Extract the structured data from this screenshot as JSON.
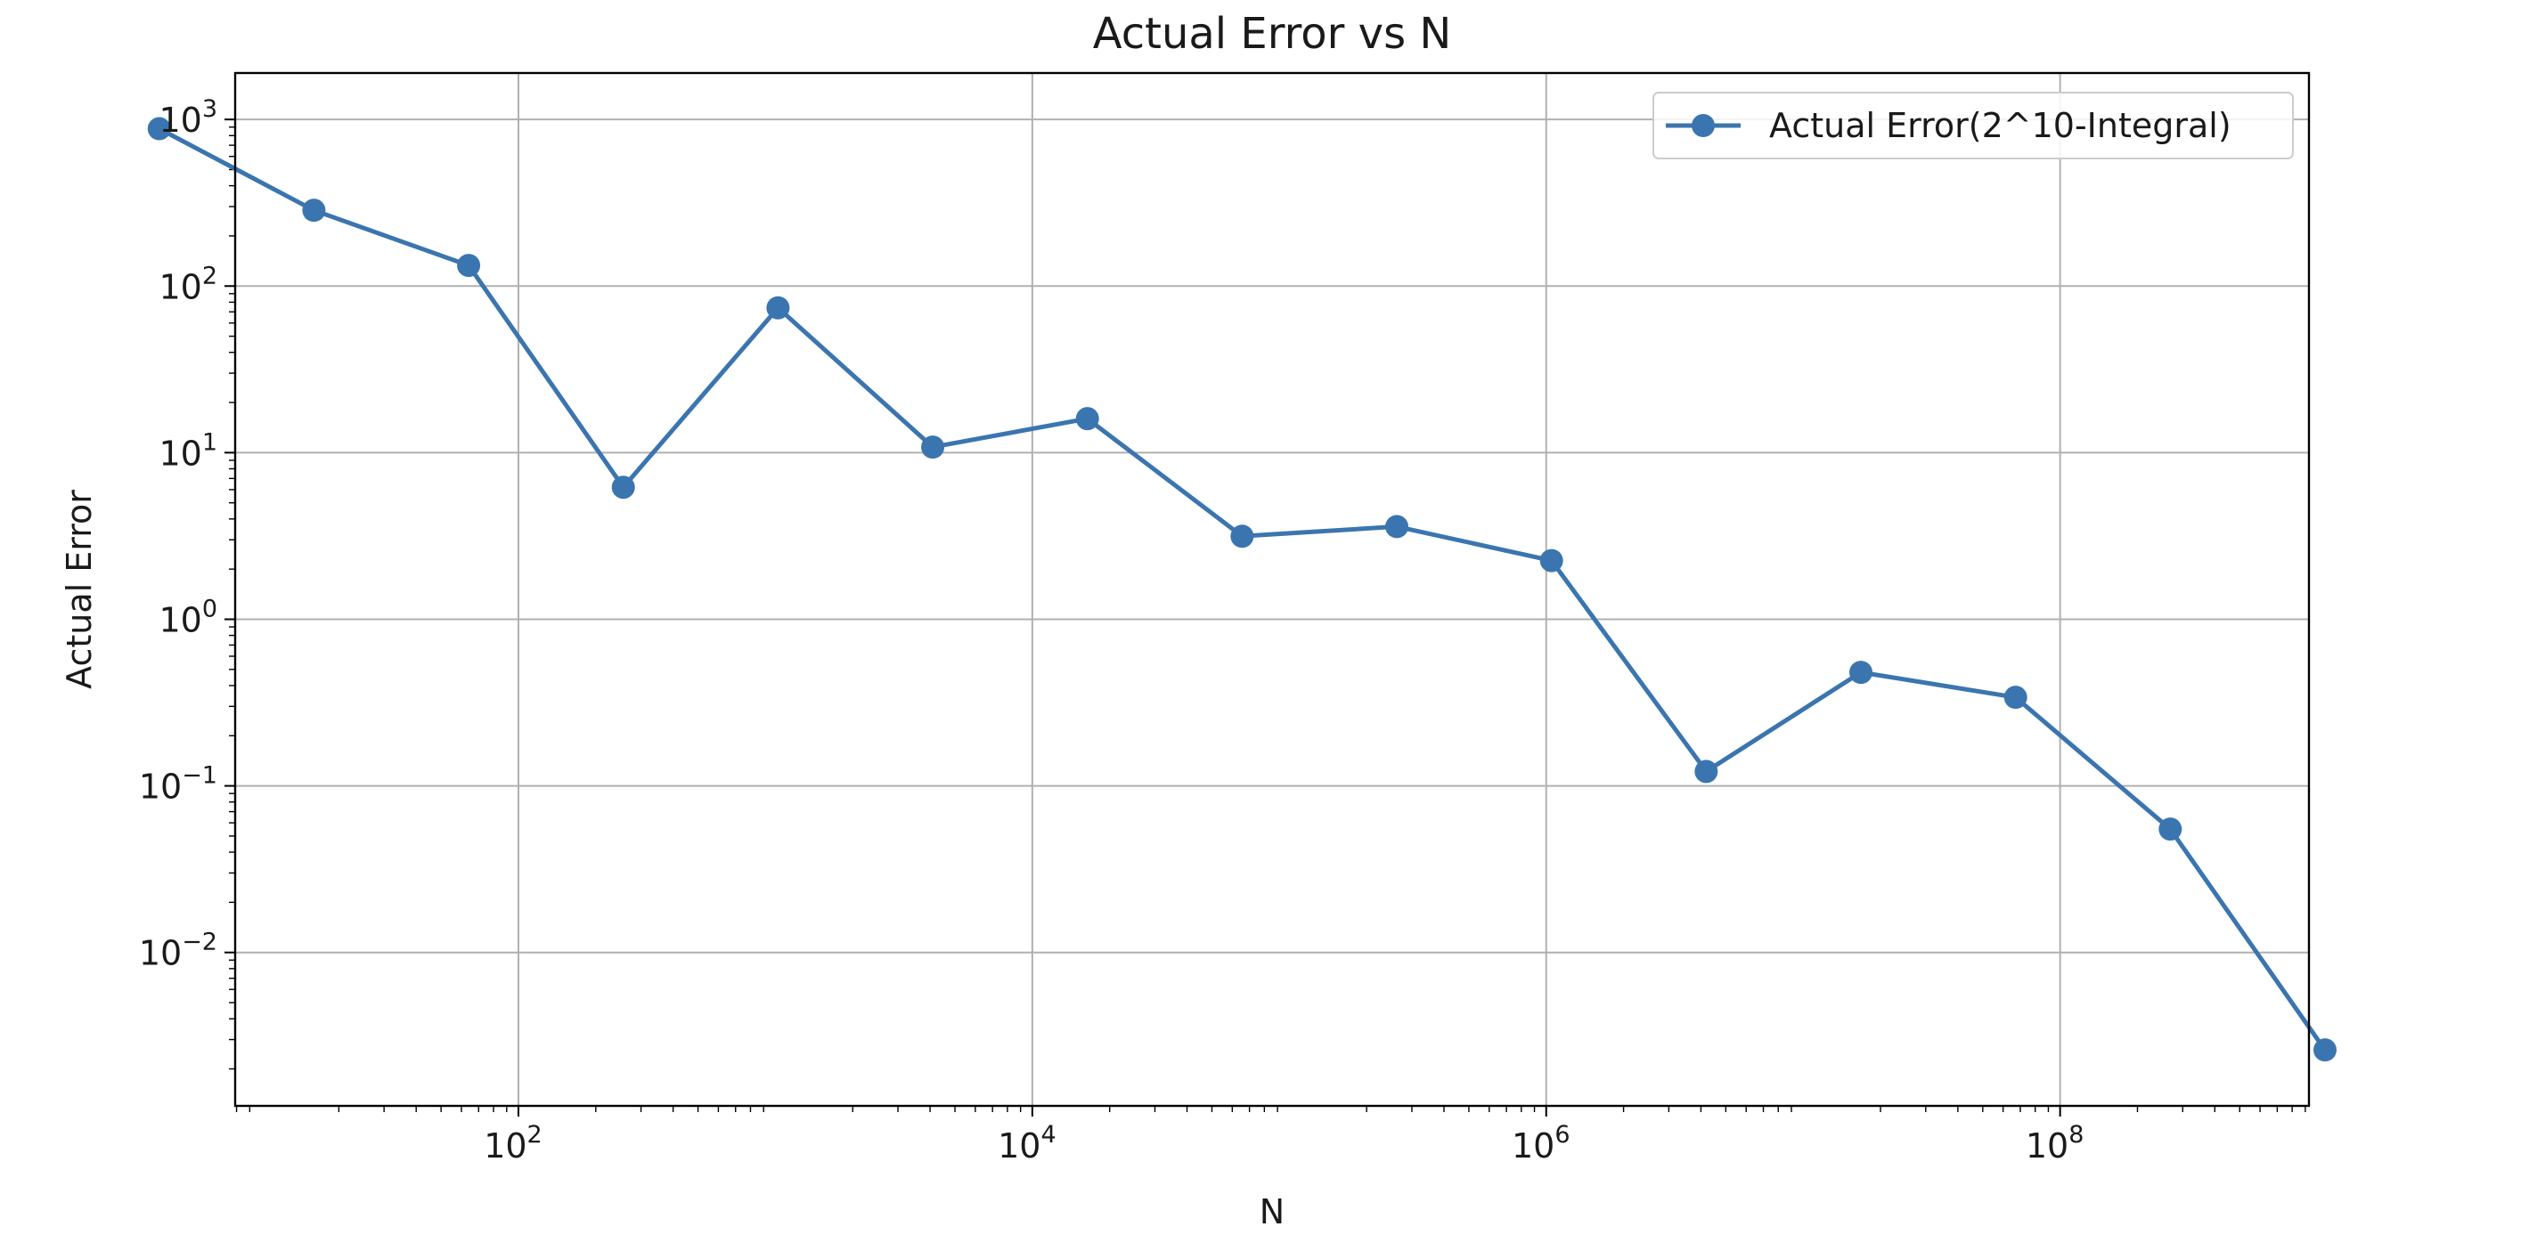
{
  "chart_data": {
    "type": "line",
    "title": "Actual Error vs N",
    "xlabel": "N",
    "ylabel": "Actual Error",
    "xscale": "log",
    "yscale": "log",
    "xlim": [
      7.9,
      930000000.0
    ],
    "ylim": [
      0.0012,
      1900
    ],
    "grid": true,
    "legend_position": "top-right",
    "x_ticks": [
      {
        "value": 100,
        "base": "10",
        "exp": "2"
      },
      {
        "value": 10000,
        "base": "10",
        "exp": "4"
      },
      {
        "value": 1000000,
        "base": "10",
        "exp": "6"
      },
      {
        "value": 100000000,
        "base": "10",
        "exp": "8"
      }
    ],
    "y_ticks": [
      {
        "value": 0.01,
        "base": "10",
        "exp": "−2"
      },
      {
        "value": 0.1,
        "base": "10",
        "exp": "−1"
      },
      {
        "value": 1,
        "base": "10",
        "exp": "0"
      },
      {
        "value": 10,
        "base": "10",
        "exp": "1"
      },
      {
        "value": 100,
        "base": "10",
        "exp": "2"
      },
      {
        "value": 1000,
        "base": "10",
        "exp": "3"
      }
    ],
    "series": [
      {
        "name": "Actual Error(2^10-Integral)",
        "color": "#3b75af",
        "marker": "circle",
        "points": [
          {
            "x": 4,
            "y": 880
          },
          {
            "x": 16,
            "y": 285
          },
          {
            "x": 64,
            "y": 133
          },
          {
            "x": 256,
            "y": 6.2
          },
          {
            "x": 1024,
            "y": 74
          },
          {
            "x": 4096,
            "y": 10.8
          },
          {
            "x": 16384,
            "y": 16
          },
          {
            "x": 65536,
            "y": 3.15
          },
          {
            "x": 262144,
            "y": 3.6
          },
          {
            "x": 1048576,
            "y": 2.25
          },
          {
            "x": 4194304,
            "y": 0.122
          },
          {
            "x": 16777216,
            "y": 0.48
          },
          {
            "x": 67108864,
            "y": 0.34
          },
          {
            "x": 268435456,
            "y": 0.055
          },
          {
            "x": 1073741824,
            "y": 0.0026
          }
        ]
      }
    ]
  }
}
